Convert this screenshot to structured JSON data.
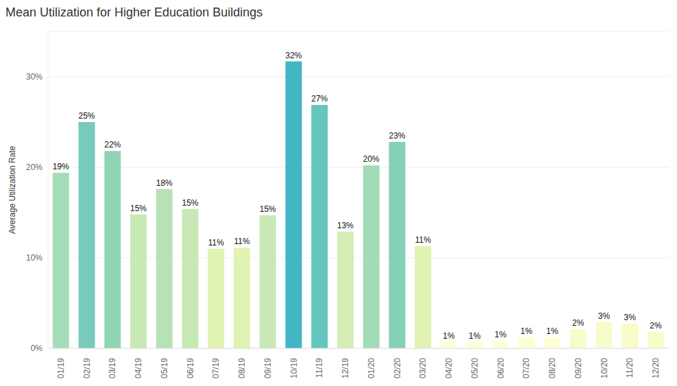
{
  "chart_data": {
    "type": "bar",
    "title": "Mean Utilization for Higher Education Buildings",
    "y_label": "Average Utilization Rate",
    "categories": [
      "01/19",
      "02/19",
      "03/19",
      "04/19",
      "05/19",
      "06/19",
      "07/19",
      "08/19",
      "09/19",
      "10/19",
      "11/19",
      "12/19",
      "01/20",
      "02/20",
      "03/20",
      "04/20",
      "05/20",
      "06/20",
      "07/20",
      "08/20",
      "09/20",
      "10/20",
      "11/20",
      "12/20"
    ],
    "values": [
      19.4,
      25.0,
      21.8,
      14.8,
      17.6,
      15.4,
      11.0,
      11.1,
      14.7,
      31.7,
      26.9,
      12.9,
      20.2,
      22.8,
      11.3,
      0.7,
      0.7,
      0.8,
      1.2,
      1.2,
      2.1,
      2.9,
      2.7,
      1.8
    ],
    "value_labels": [
      "19%",
      "25%",
      "22%",
      "15%",
      "18%",
      "15%",
      "11%",
      "11%",
      "15%",
      "32%",
      "27%",
      "13%",
      "20%",
      "23%",
      "11%",
      "1%",
      "1%",
      "1%",
      "1%",
      "1%",
      "2%",
      "3%",
      "3%",
      "2%"
    ],
    "colors": [
      "#a6ddb8",
      "#78cbbb",
      "#8fd4b5",
      "#c8e9b5",
      "#b6e2b6",
      "#c8e9b5",
      "#e0f3b3",
      "#e0f3b3",
      "#c8e9b5",
      "#41b6c4",
      "#65c6be",
      "#d3edb4",
      "#a2dbb8",
      "#84d0b8",
      "#e0f3b3",
      "#fdffd5",
      "#fdffd5",
      "#fdffd5",
      "#fdffd5",
      "#fdffd5",
      "#f8fcc9",
      "#f7fcc8",
      "#f7fcc8",
      "#f8fcc9"
    ],
    "ylim": [
      0,
      35
    ],
    "yticks": [
      {
        "value": 0,
        "label": "0%"
      },
      {
        "value": 10,
        "label": "10%"
      },
      {
        "value": 20,
        "label": "20%"
      },
      {
        "value": 30,
        "label": "30%"
      }
    ],
    "grid": true,
    "data_labels": true
  }
}
